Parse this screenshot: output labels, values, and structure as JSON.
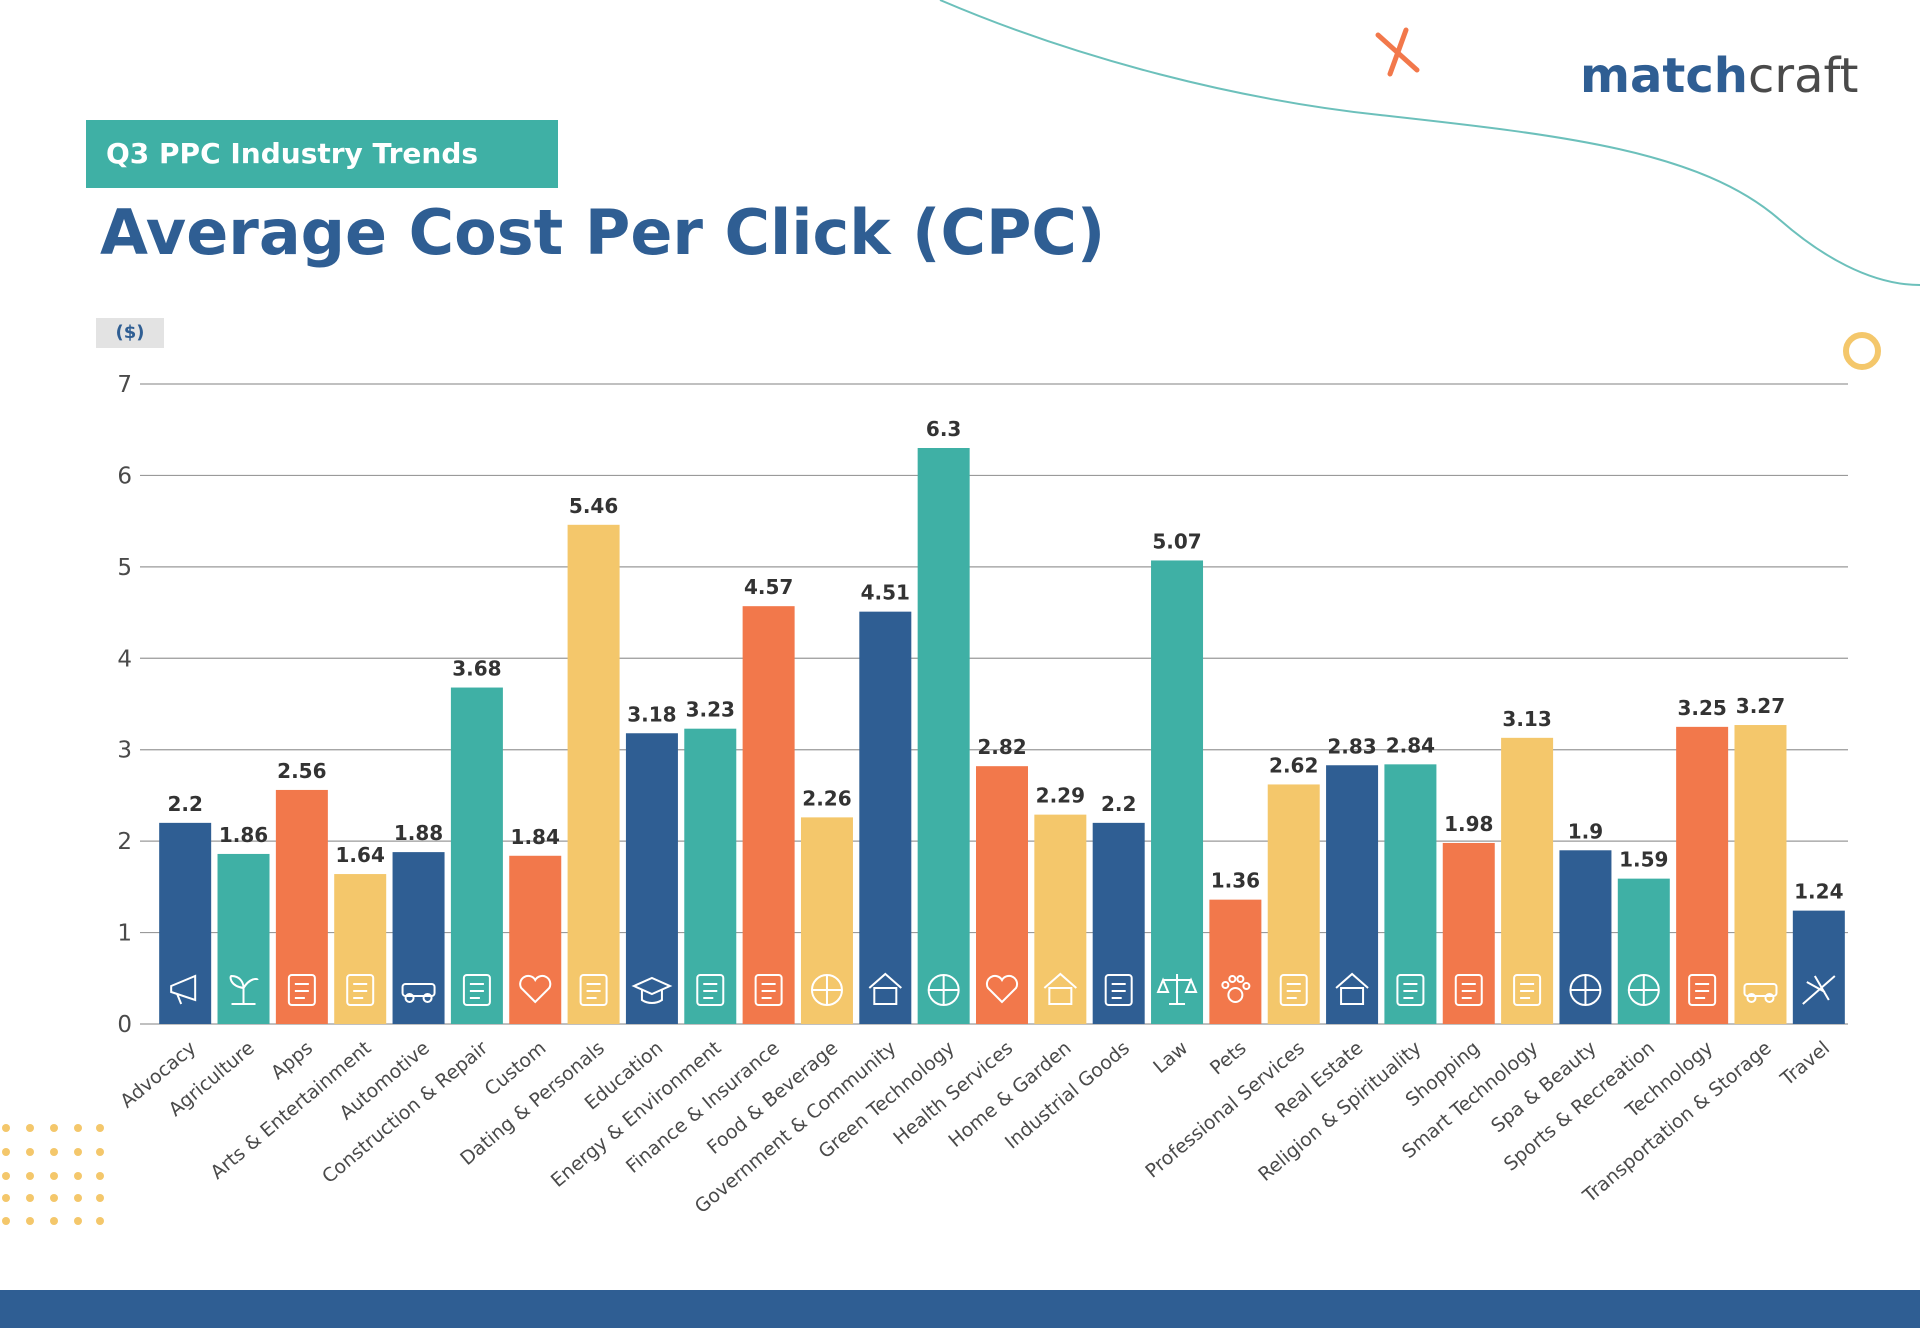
{
  "header": {
    "tag": "Q3 PPC Industry Trends",
    "title": "Average Cost Per Click (CPC)",
    "brand_part1": "match",
    "brand_part2": "craft",
    "unit": "($)"
  },
  "colors": {
    "blue": "#2f5e93",
    "teal": "#3fb0a5",
    "orange": "#f2784b",
    "yellow": "#f4c76b",
    "gridline": "#9a9a9a",
    "label": "#4a4a4a"
  },
  "chart_data": {
    "type": "bar",
    "title": "Average Cost Per Click (CPC)",
    "ylabel": "($)",
    "ylim": [
      0,
      7
    ],
    "yticks": [
      0,
      1,
      2,
      3,
      4,
      5,
      6,
      7
    ],
    "grid": true,
    "categories": [
      "Advocacy",
      "Agriculture",
      "Apps",
      "Arts & Entertainment",
      "Automotive",
      "Construction & Repair",
      "Custom",
      "Dating & Personals",
      "Education",
      "Energy & Environment",
      "Finance & Insurance",
      "Food & Beverage",
      "Government & Community",
      "Green Technology",
      "Health Services",
      "Home & Garden",
      "Industrial Goods",
      "Law",
      "Pets",
      "Professional Services",
      "Real Estate",
      "Religion & Spirituality",
      "Shopping",
      "Smart Technology",
      "Spa & Beauty",
      "Sports & Recreation",
      "Technology",
      "Transportation & Storage",
      "Travel"
    ],
    "values": [
      2.2,
      1.86,
      2.56,
      1.64,
      1.88,
      3.68,
      1.84,
      5.46,
      3.18,
      3.23,
      4.57,
      2.26,
      4.51,
      6.3,
      2.82,
      2.29,
      2.2,
      5.07,
      1.36,
      2.62,
      2.83,
      2.84,
      1.98,
      3.13,
      1.9,
      1.59,
      3.25,
      3.27,
      1.24
    ],
    "value_labels": [
      "2.2",
      "1.86",
      "2.56",
      "1.64",
      "1.88",
      "3.68",
      "1.84",
      "5.46",
      "3.18",
      "3.23",
      "4.57",
      "2.26",
      "4.51",
      "6.3",
      "2.82",
      "2.29",
      "2.2",
      "5.07",
      "1.36",
      "2.62",
      "2.83",
      "2.84",
      "1.98",
      "3.13",
      "1.9",
      "1.59",
      "3.25",
      "3.27",
      "1.24"
    ],
    "bar_colors": [
      "blue",
      "teal",
      "orange",
      "yellow",
      "blue",
      "teal",
      "orange",
      "yellow",
      "blue",
      "teal",
      "orange",
      "yellow",
      "blue",
      "teal",
      "orange",
      "yellow",
      "blue",
      "teal",
      "orange",
      "yellow",
      "blue",
      "teal",
      "orange",
      "yellow",
      "blue",
      "teal",
      "orange",
      "yellow",
      "blue"
    ],
    "icons": [
      "megaphone-icon",
      "sprout-icon",
      "app-grid-icon",
      "palette-icon",
      "car-icon",
      "crane-icon",
      "custom-sliders-icon",
      "couple-icon",
      "graduation-cap-icon",
      "solar-wind-icon",
      "finance-report-icon",
      "plate-utensils-icon",
      "government-building-icon",
      "green-globe-icon",
      "health-heart-icon",
      "house-icon",
      "factory-icon",
      "scales-icon",
      "paw-icon",
      "briefcase-icon",
      "real-estate-house-icon",
      "praying-hands-icon",
      "shopping-bag-icon",
      "smart-phone-icon",
      "spa-face-icon",
      "sports-ball-icon",
      "technology-chip-icon",
      "truck-icon",
      "airplane-icon"
    ]
  }
}
